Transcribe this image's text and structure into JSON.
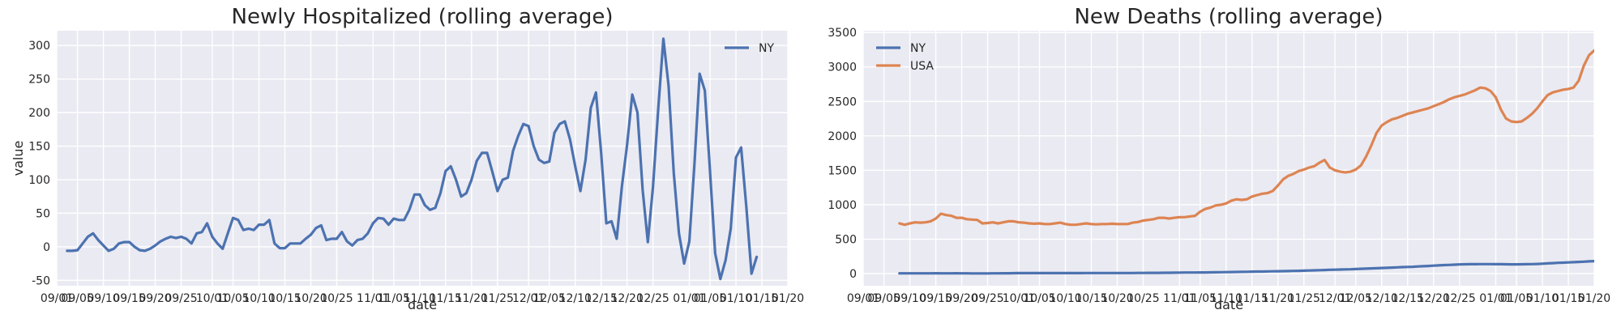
{
  "chart_data": [
    {
      "type": "line",
      "title": "Newly Hospitalized (rolling average)",
      "xlabel": "date",
      "ylabel": "value",
      "x_type": "date",
      "xlim": [
        "2020-09-01",
        "2021-01-20"
      ],
      "ylim": [
        -58,
        322
      ],
      "x_ticks": [
        "2020-09-01",
        "2020-09-05",
        "2020-09-10",
        "2020-09-15",
        "2020-09-20",
        "2020-09-25",
        "2020-10-01",
        "2020-10-05",
        "2020-10-10",
        "2020-10-15",
        "2020-10-20",
        "2020-10-25",
        "2020-11-01",
        "2020-11-05",
        "2020-11-10",
        "2020-11-15",
        "2020-11-20",
        "2020-11-25",
        "2020-12-01",
        "2020-12-05",
        "2020-12-10",
        "2020-12-15",
        "2020-12-20",
        "2020-12-25",
        "2021-01-01",
        "2021-01-05",
        "2021-01-10",
        "2021-01-15",
        "2021-01-20"
      ],
      "x_tick_labels": [
        "09/01",
        "09/05",
        "09/10",
        "09/15",
        "09/20",
        "09/25",
        "10/01",
        "10/05",
        "10/10",
        "10/15",
        "10/20",
        "10/25",
        "11/01",
        "11/05",
        "11/10",
        "11/15",
        "11/20",
        "11/25",
        "12/01",
        "12/05",
        "12/10",
        "12/15",
        "12/20",
        "12/25",
        "01/01",
        "01/05",
        "01/10",
        "01/15",
        "01/20"
      ],
      "y_ticks": [
        -50,
        0,
        50,
        100,
        150,
        200,
        250,
        300
      ],
      "grid": true,
      "legend_position": "top-right",
      "series": [
        {
          "name": "NY",
          "color": "#4c72b0",
          "x_start": "2020-09-03",
          "step_days": 1,
          "values": [
            -6,
            -6,
            -5,
            5,
            15,
            20,
            10,
            2,
            -6,
            -3,
            5,
            7,
            7,
            0,
            -5,
            -6,
            -3,
            2,
            8,
            12,
            15,
            13,
            15,
            12,
            5,
            20,
            22,
            35,
            15,
            5,
            -3,
            20,
            43,
            40,
            25,
            27,
            25,
            33,
            33,
            40,
            5,
            -2,
            -2,
            5,
            5,
            5,
            12,
            18,
            28,
            32,
            10,
            12,
            12,
            22,
            8,
            2,
            10,
            12,
            20,
            35,
            43,
            42,
            33,
            42,
            40,
            40,
            55,
            78,
            78,
            62,
            55,
            58,
            80,
            113,
            120,
            100,
            75,
            80,
            100,
            128,
            140,
            140,
            112,
            83,
            100,
            103,
            143,
            165,
            183,
            180,
            150,
            130,
            125,
            127,
            170,
            183,
            187,
            160,
            120,
            83,
            130,
            207,
            230,
            140,
            35,
            38,
            12,
            90,
            152,
            227,
            200,
            85,
            7,
            90,
            205,
            310,
            240,
            110,
            20,
            -25,
            8,
            125,
            258,
            233,
            113,
            -10,
            -48,
            -20,
            27,
            133,
            148,
            60,
            -40,
            -15
          ]
        }
      ]
    },
    {
      "type": "line",
      "title": "New Deaths (rolling average)",
      "xlabel": "date",
      "ylabel": "",
      "x_type": "date",
      "xlim": [
        "2020-09-01",
        "2021-01-20"
      ],
      "ylim": [
        -175,
        3525
      ],
      "x_ticks": [
        "2020-09-01",
        "2020-09-05",
        "2020-09-10",
        "2020-09-15",
        "2020-09-20",
        "2020-09-25",
        "2020-10-01",
        "2020-10-05",
        "2020-10-10",
        "2020-10-15",
        "2020-10-20",
        "2020-10-25",
        "2020-11-01",
        "2020-11-05",
        "2020-11-10",
        "2020-11-15",
        "2020-11-20",
        "2020-11-25",
        "2020-12-01",
        "2020-12-05",
        "2020-12-10",
        "2020-12-15",
        "2020-12-20",
        "2020-12-25",
        "2021-01-01",
        "2021-01-05",
        "2021-01-10",
        "2021-01-15",
        "2021-01-20"
      ],
      "x_tick_labels": [
        "09/01",
        "09/05",
        "09/10",
        "09/15",
        "09/20",
        "09/25",
        "10/01",
        "10/05",
        "10/10",
        "10/15",
        "10/20",
        "10/25",
        "11/01",
        "11/05",
        "11/10",
        "11/15",
        "11/20",
        "11/25",
        "12/01",
        "12/05",
        "12/10",
        "12/15",
        "12/20",
        "12/25",
        "01/01",
        "01/05",
        "01/10",
        "01/15",
        "01/20"
      ],
      "y_ticks": [
        0,
        500,
        1000,
        1500,
        2000,
        2500,
        3000,
        3500
      ],
      "grid": true,
      "legend_position": "top-left",
      "series": [
        {
          "name": "NY",
          "color": "#4c72b0",
          "x_start": "2020-09-08",
          "step_days": 1,
          "values": [
            5,
            5,
            5,
            5,
            5,
            5,
            5,
            6,
            5,
            5,
            5,
            6,
            5,
            5,
            4,
            4,
            4,
            4,
            5,
            5,
            6,
            6,
            7,
            8,
            8,
            8,
            9,
            8,
            8,
            8,
            8,
            8,
            8,
            8,
            8,
            8,
            9,
            9,
            9,
            9,
            10,
            10,
            10,
            10,
            10,
            10,
            11,
            11,
            12,
            12,
            12,
            13,
            13,
            14,
            15,
            16,
            17,
            17,
            18,
            18,
            19,
            20,
            21,
            22,
            24,
            25,
            26,
            27,
            29,
            30,
            31,
            33,
            34,
            35,
            36,
            38,
            40,
            41,
            43,
            46,
            48,
            50,
            53,
            56,
            58,
            60,
            62,
            64,
            67,
            70,
            73,
            76,
            79,
            82,
            85,
            88,
            92,
            95,
            98,
            100,
            104,
            108,
            112,
            116,
            120,
            124,
            127,
            130,
            134,
            136,
            137,
            138,
            139,
            139,
            139,
            138,
            137,
            136,
            135,
            135,
            136,
            137,
            139,
            141,
            145,
            149,
            153,
            157,
            160,
            163,
            167,
            170,
            174,
            178,
            182,
            187,
            191,
            195,
            197,
            197
          ]
        },
        {
          "name": "USA",
          "color": "#dd8452",
          "x_start": "2020-09-08",
          "step_days": 1,
          "values": [
            730,
            710,
            730,
            745,
            740,
            745,
            760,
            800,
            870,
            850,
            840,
            810,
            810,
            790,
            785,
            780,
            730,
            735,
            745,
            730,
            745,
            760,
            760,
            745,
            740,
            730,
            725,
            730,
            720,
            720,
            730,
            740,
            720,
            710,
            710,
            720,
            730,
            720,
            715,
            720,
            720,
            725,
            720,
            720,
            720,
            740,
            750,
            770,
            780,
            790,
            810,
            810,
            800,
            810,
            820,
            820,
            830,
            840,
            900,
            940,
            960,
            990,
            1000,
            1020,
            1060,
            1080,
            1070,
            1080,
            1120,
            1140,
            1160,
            1170,
            1200,
            1280,
            1370,
            1420,
            1450,
            1490,
            1510,
            1540,
            1560,
            1610,
            1650,
            1540,
            1500,
            1480,
            1470,
            1480,
            1510,
            1570,
            1700,
            1860,
            2040,
            2150,
            2200,
            2240,
            2260,
            2290,
            2320,
            2340,
            2360,
            2380,
            2400,
            2430,
            2460,
            2490,
            2530,
            2560,
            2580,
            2600,
            2630,
            2660,
            2700,
            2690,
            2650,
            2560,
            2380,
            2250,
            2210,
            2200,
            2210,
            2260,
            2320,
            2400,
            2500,
            2590,
            2630,
            2650,
            2670,
            2680,
            2700,
            2800,
            3020,
            3170,
            3240,
            3280,
            3340,
            3340,
            3320,
            3300
          ]
        }
      ]
    }
  ]
}
